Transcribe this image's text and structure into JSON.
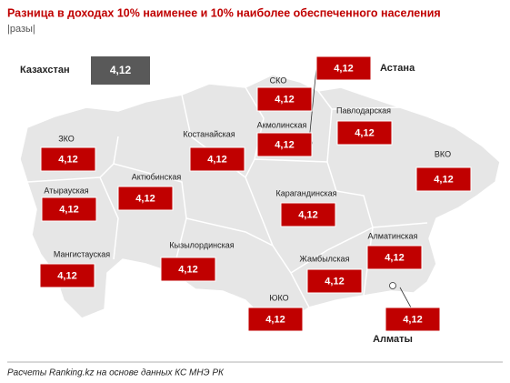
{
  "header": {
    "title": "Разница в доходах 10% наименее и 10% наиболее обеспеченного населения",
    "subtitle": "|разы|"
  },
  "country": {
    "name": "Казахстан",
    "value": "4,12"
  },
  "regions": [
    {
      "name": "Астана",
      "value": "4,12"
    },
    {
      "name": "СКО",
      "value": "4,12"
    },
    {
      "name": "Акмолинская",
      "value": "4,12"
    },
    {
      "name": "Павлодарская",
      "value": "4,12"
    },
    {
      "name": "Костанайская",
      "value": "4,12"
    },
    {
      "name": "ЗКО",
      "value": "4,12"
    },
    {
      "name": "ВКО",
      "value": "4,12"
    },
    {
      "name": "Актюбинская",
      "value": "4,12"
    },
    {
      "name": "Атырауская",
      "value": "4,12"
    },
    {
      "name": "Карагандинская",
      "value": "4,12"
    },
    {
      "name": "Алматинская",
      "value": "4,12"
    },
    {
      "name": "Кызылординская",
      "value": "4,12"
    },
    {
      "name": "Мангистауская",
      "value": "4,12"
    },
    {
      "name": "Жамбылская",
      "value": "4,12"
    },
    {
      "name": "ЮКО",
      "value": "4,12"
    },
    {
      "name": "Алматы",
      "value": "4,12"
    }
  ],
  "footer": {
    "source": "Расчеты Ranking.kz на основе данных КС МНЭ РК"
  }
}
